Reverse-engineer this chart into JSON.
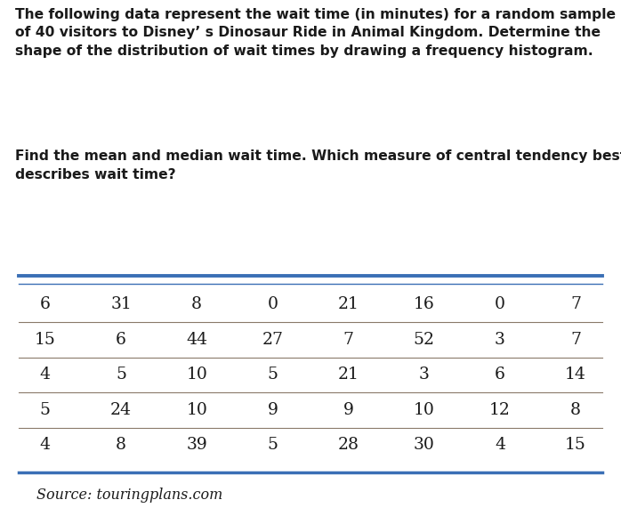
{
  "title_text": "The following data represent the wait time (in minutes) for a random sample\nof 40 visitors to Disney’ s Dinosaur Ride in Animal Kingdom. Determine the\nshape of the distribution of wait times by drawing a frequency histogram.",
  "subtitle_text": "Find the mean and median wait time. Which measure of central tendency best\ndescribes wait time?",
  "table_rows": [
    [
      6,
      31,
      8,
      0,
      21,
      16,
      0,
      7
    ],
    [
      15,
      6,
      44,
      27,
      7,
      52,
      3,
      7
    ],
    [
      4,
      5,
      10,
      5,
      21,
      3,
      6,
      14
    ],
    [
      5,
      24,
      10,
      9,
      9,
      10,
      12,
      8
    ],
    [
      4,
      8,
      39,
      5,
      28,
      30,
      4,
      15
    ]
  ],
  "source_text": "Source: touringplans.com",
  "table_bg": "#cfc0a8",
  "page_bg": "#ffffff",
  "top_rule_color1": "#3a6fb5",
  "top_rule_color2": "#3a6fb5",
  "bottom_rule_color": "#3a6fb5",
  "divider_color": "#8a7a6a",
  "title_fontsize": 11.2,
  "subtitle_fontsize": 11.2,
  "table_fontsize": 13.5,
  "source_fontsize": 11.5,
  "text_color": "#1a1a1a"
}
